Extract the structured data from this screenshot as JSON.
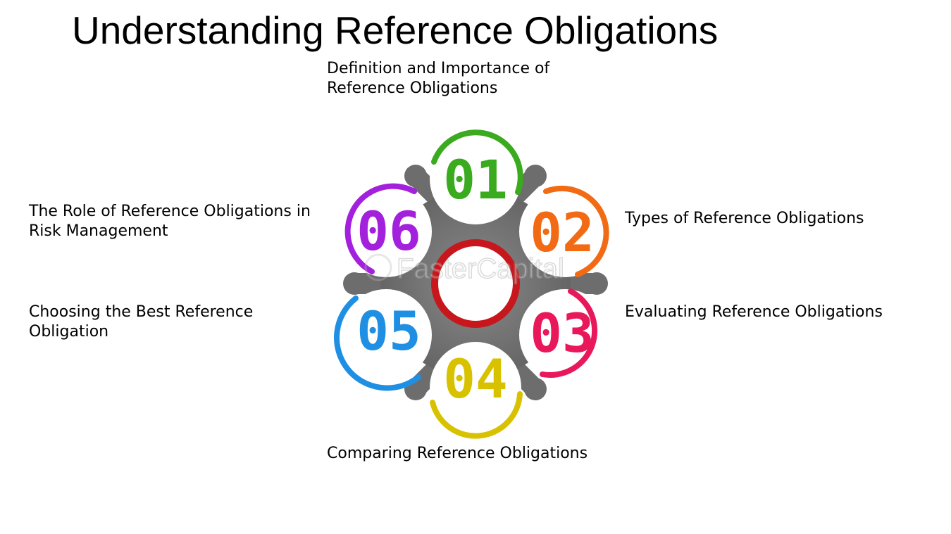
{
  "title": "Understanding Reference Obligations",
  "watermark": "FasterCapital",
  "steps": [
    {
      "number": "01",
      "label": "Definition and Importance of\nReference Obligations",
      "color": "#3aaa1e"
    },
    {
      "number": "02",
      "label": "Types of Reference Obligations",
      "color": "#f26b14"
    },
    {
      "number": "03",
      "label": "Evaluating Reference Obligations",
      "color": "#e8185a"
    },
    {
      "number": "04",
      "label": "Comparing Reference Obligations",
      "color": "#d8c200"
    },
    {
      "number": "05",
      "label": "Choosing the Best Reference\nObligation",
      "color": "#1f8fe3"
    },
    {
      "number": "06",
      "label": "The Role of Reference Obligations in\nRisk Management",
      "color": "#a320dc"
    }
  ],
  "center_ring_color": "#c8171c",
  "hub_color": "#6f6f6f"
}
